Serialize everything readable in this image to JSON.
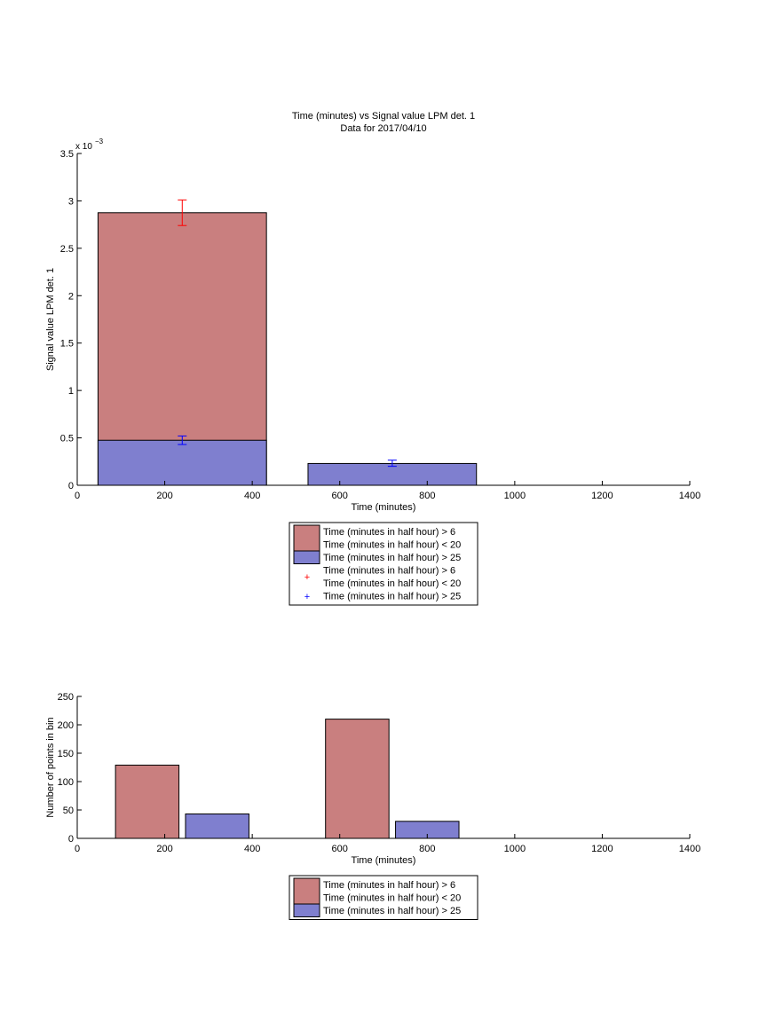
{
  "colors": {
    "series_red": "#c97f7f",
    "series_blue": "#7f7fcf",
    "errorbar_red": "#ff0000",
    "errorbar_blue": "#0000ff",
    "axis": "#000000"
  },
  "chart_data": [
    {
      "type": "bar",
      "title": "Time (minutes) vs Signal value LPM det. 1",
      "subtitle": "Data for 2017/04/10",
      "xlabel": "Time (minutes)",
      "ylabel": "Signal value LPM det. 1",
      "y_exponent_base": "x 10",
      "y_exponent_power": "−3",
      "xlim": [
        0,
        1400
      ],
      "ylim": [
        0,
        3.5
      ],
      "x_ticks": [
        "0",
        "200",
        "400",
        "600",
        "800",
        "1000",
        "1200",
        "1400"
      ],
      "y_ticks": [
        "0",
        "0.5",
        "1",
        "1.5",
        "2",
        "2.5",
        "3",
        "3.5"
      ],
      "bar_width": 385,
      "bars": [
        {
          "series": 0,
          "x": 240,
          "value": 2.875
        },
        {
          "series": 1,
          "x": 240,
          "value": 0.475
        },
        {
          "series": 1,
          "x": 720,
          "value": 0.23
        },
        {
          "series": 1,
          "x": 1200,
          "value": 0.0
        }
      ],
      "error_bars": [
        {
          "series": 0,
          "x": 240,
          "value": 2.875,
          "low": 2.74,
          "high": 3.01
        },
        {
          "series": 1,
          "x": 240,
          "value": 0.475,
          "low": 0.43,
          "high": 0.52
        },
        {
          "series": 1,
          "x": 720,
          "value": 0.23,
          "low": 0.2,
          "high": 0.265
        },
        {
          "series": 1,
          "x": 1200,
          "value": 0.0,
          "low": 0.0,
          "high": 0.0
        }
      ],
      "legend": [
        {
          "kind": "patch",
          "series": 0,
          "lines": [
            "Time (minutes in half hour) > 6",
            "Time (minutes in half hour) < 20"
          ]
        },
        {
          "kind": "patch",
          "series": 1,
          "lines": [
            "Time (minutes in half hour) > 25"
          ]
        },
        {
          "kind": "marker",
          "series": 0,
          "lines": [
            "Time (minutes in half hour) > 6",
            "Time (minutes in half hour) < 20"
          ]
        },
        {
          "kind": "marker",
          "series": 1,
          "lines": [
            "Time (minutes in half hour) > 25"
          ]
        }
      ],
      "legend_position": "below"
    },
    {
      "type": "bar",
      "xlabel": "Time (minutes)",
      "ylabel": "Number of points in bin",
      "xlim": [
        0,
        1400
      ],
      "ylim": [
        0,
        250
      ],
      "x_ticks": [
        "0",
        "200",
        "400",
        "600",
        "800",
        "1000",
        "1200",
        "1400"
      ],
      "y_ticks": [
        "0",
        "50",
        "100",
        "150",
        "200",
        "250"
      ],
      "bar_width": 145,
      "bars": [
        {
          "series": 0,
          "x": 160,
          "value": 129
        },
        {
          "series": 1,
          "x": 320,
          "value": 43
        },
        {
          "series": 0,
          "x": 640,
          "value": 210
        },
        {
          "series": 1,
          "x": 800,
          "value": 30
        }
      ],
      "legend": [
        {
          "kind": "patch",
          "series": 0,
          "lines": [
            "Time (minutes in half hour) > 6",
            "Time (minutes in half hour) < 20"
          ]
        },
        {
          "kind": "patch",
          "series": 1,
          "lines": [
            "Time (minutes in half hour) > 25"
          ]
        }
      ],
      "legend_position": "below"
    }
  ]
}
